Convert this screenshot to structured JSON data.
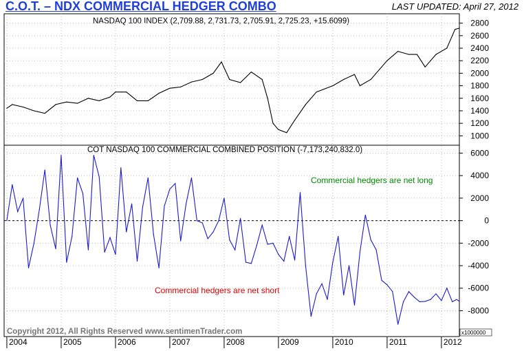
{
  "header": {
    "title": "C.O.T. – NDX COMMERCIAL HEDGER COMBO",
    "updated": "LAST UPDATED:  April 27, 2012"
  },
  "footer": {
    "copyright": "Copyright 2012, All Rights Reserved  www.sentimenTrader.com"
  },
  "chart_data": [
    {
      "type": "line",
      "title": "NASDAQ 100 INDEX (2,709.88, 2,731.73, 2,705.91, 2,725.23, +15.6099)",
      "ylim": [
        850,
        2950
      ],
      "yticks": [
        1000,
        1200,
        1400,
        1600,
        1800,
        2000,
        2200,
        2400,
        2600,
        2800
      ],
      "series": [
        {
          "color": "#000000",
          "x": [
            2004.0,
            2004.1,
            2004.3,
            2004.5,
            2004.7,
            2004.9,
            2005.1,
            2005.3,
            2005.5,
            2005.7,
            2005.9,
            2006.0,
            2006.2,
            2006.4,
            2006.6,
            2006.8,
            2007.0,
            2007.2,
            2007.4,
            2007.6,
            2007.8,
            2007.95,
            2008.1,
            2008.3,
            2008.5,
            2008.7,
            2008.8,
            2008.9,
            2009.0,
            2009.15,
            2009.3,
            2009.5,
            2009.7,
            2010.0,
            2010.2,
            2010.4,
            2010.5,
            2010.7,
            2011.0,
            2011.2,
            2011.4,
            2011.55,
            2011.7,
            2011.8,
            2011.9,
            2012.1,
            2012.25,
            2012.33
          ],
          "values": [
            1440,
            1500,
            1460,
            1400,
            1360,
            1500,
            1540,
            1520,
            1600,
            1560,
            1620,
            1700,
            1700,
            1560,
            1560,
            1680,
            1760,
            1780,
            1860,
            1900,
            2000,
            2180,
            1900,
            1850,
            2020,
            1900,
            1600,
            1200,
            1100,
            1050,
            1250,
            1500,
            1700,
            1800,
            1900,
            1980,
            1800,
            1900,
            2200,
            2350,
            2300,
            2300,
            2100,
            2200,
            2300,
            2400,
            2700,
            2720
          ]
        }
      ]
    },
    {
      "type": "line",
      "title": "COT NASDAQ 100 COMMERCIAL COMBINED POSITION (-7,173,240,832.0)",
      "units": "x1000000",
      "ylim": [
        -9500,
        6700
      ],
      "yticks": [
        -8000,
        -6000,
        -4000,
        -2000,
        0,
        2000,
        4000,
        6000
      ],
      "zero_line": true,
      "series": [
        {
          "color": "#1a1acc",
          "x": [
            2004.0,
            2004.1,
            2004.2,
            2004.3,
            2004.4,
            2004.5,
            2004.6,
            2004.7,
            2004.8,
            2004.9,
            2005.0,
            2005.1,
            2005.2,
            2005.3,
            2005.4,
            2005.5,
            2005.6,
            2005.7,
            2005.8,
            2005.9,
            2006.0,
            2006.1,
            2006.2,
            2006.3,
            2006.4,
            2006.5,
            2006.6,
            2006.7,
            2006.8,
            2006.9,
            2007.0,
            2007.1,
            2007.2,
            2007.3,
            2007.4,
            2007.5,
            2007.6,
            2007.7,
            2007.8,
            2007.9,
            2008.0,
            2008.1,
            2008.2,
            2008.3,
            2008.4,
            2008.5,
            2008.6,
            2008.7,
            2008.8,
            2008.9,
            2009.0,
            2009.1,
            2009.2,
            2009.3,
            2009.4,
            2009.5,
            2009.6,
            2009.7,
            2009.8,
            2009.9,
            2010.0,
            2010.1,
            2010.2,
            2010.3,
            2010.4,
            2010.5,
            2010.6,
            2010.7,
            2010.8,
            2010.9,
            2011.0,
            2011.1,
            2011.2,
            2011.3,
            2011.4,
            2011.5,
            2011.6,
            2011.7,
            2011.8,
            2011.9,
            2012.0,
            2012.1,
            2012.2,
            2012.28,
            2012.33
          ],
          "values": [
            0,
            3200,
            800,
            2000,
            -4200,
            -2000,
            1000,
            4500,
            -400,
            -2500,
            5800,
            -3700,
            -1400,
            3800,
            2400,
            -2600,
            5800,
            3900,
            -2800,
            -1500,
            -3000,
            4700,
            -1000,
            1500,
            -3600,
            1200,
            3800,
            -1200,
            -4200,
            1300,
            2800,
            3300,
            -1800,
            1500,
            3800,
            0,
            -200,
            -1600,
            -1000,
            0,
            2000,
            -1700,
            -2600,
            200,
            -3700,
            -3800,
            -2200,
            -400,
            -2100,
            -2000,
            -3000,
            -3600,
            -1400,
            -3500,
            2500,
            -4000,
            -8500,
            -6500,
            -5600,
            -7000,
            -3700,
            -1400,
            -6600,
            -4000,
            -7500,
            -2800,
            500,
            -1700,
            -2600,
            -5300,
            -5700,
            -6300,
            -9200,
            -7200,
            -6300,
            -6800,
            -7200,
            -7173,
            -7000,
            -6500,
            -7100,
            -6000,
            -7200,
            -7000,
            -7173
          ]
        }
      ],
      "annotations": [
        {
          "text": "Commercial hedgers are net long",
          "color": "#008800"
        },
        {
          "text": "Commercial hedgers are net short",
          "color": "#dd0000"
        }
      ]
    }
  ],
  "x_axis": {
    "range": [
      2003.95,
      2012.33
    ],
    "labels": [
      {
        "year": 2004,
        "label": "2004"
      },
      {
        "year": 2005,
        "label": "2005"
      },
      {
        "year": 2006,
        "label": "2006"
      },
      {
        "year": 2007,
        "label": "2007"
      },
      {
        "year": 2008,
        "label": "2008"
      },
      {
        "year": 2009,
        "label": "2009"
      },
      {
        "year": 2010,
        "label": "2010"
      },
      {
        "year": 2011,
        "label": "2011"
      },
      {
        "year": 2012,
        "label": "2012"
      }
    ]
  }
}
